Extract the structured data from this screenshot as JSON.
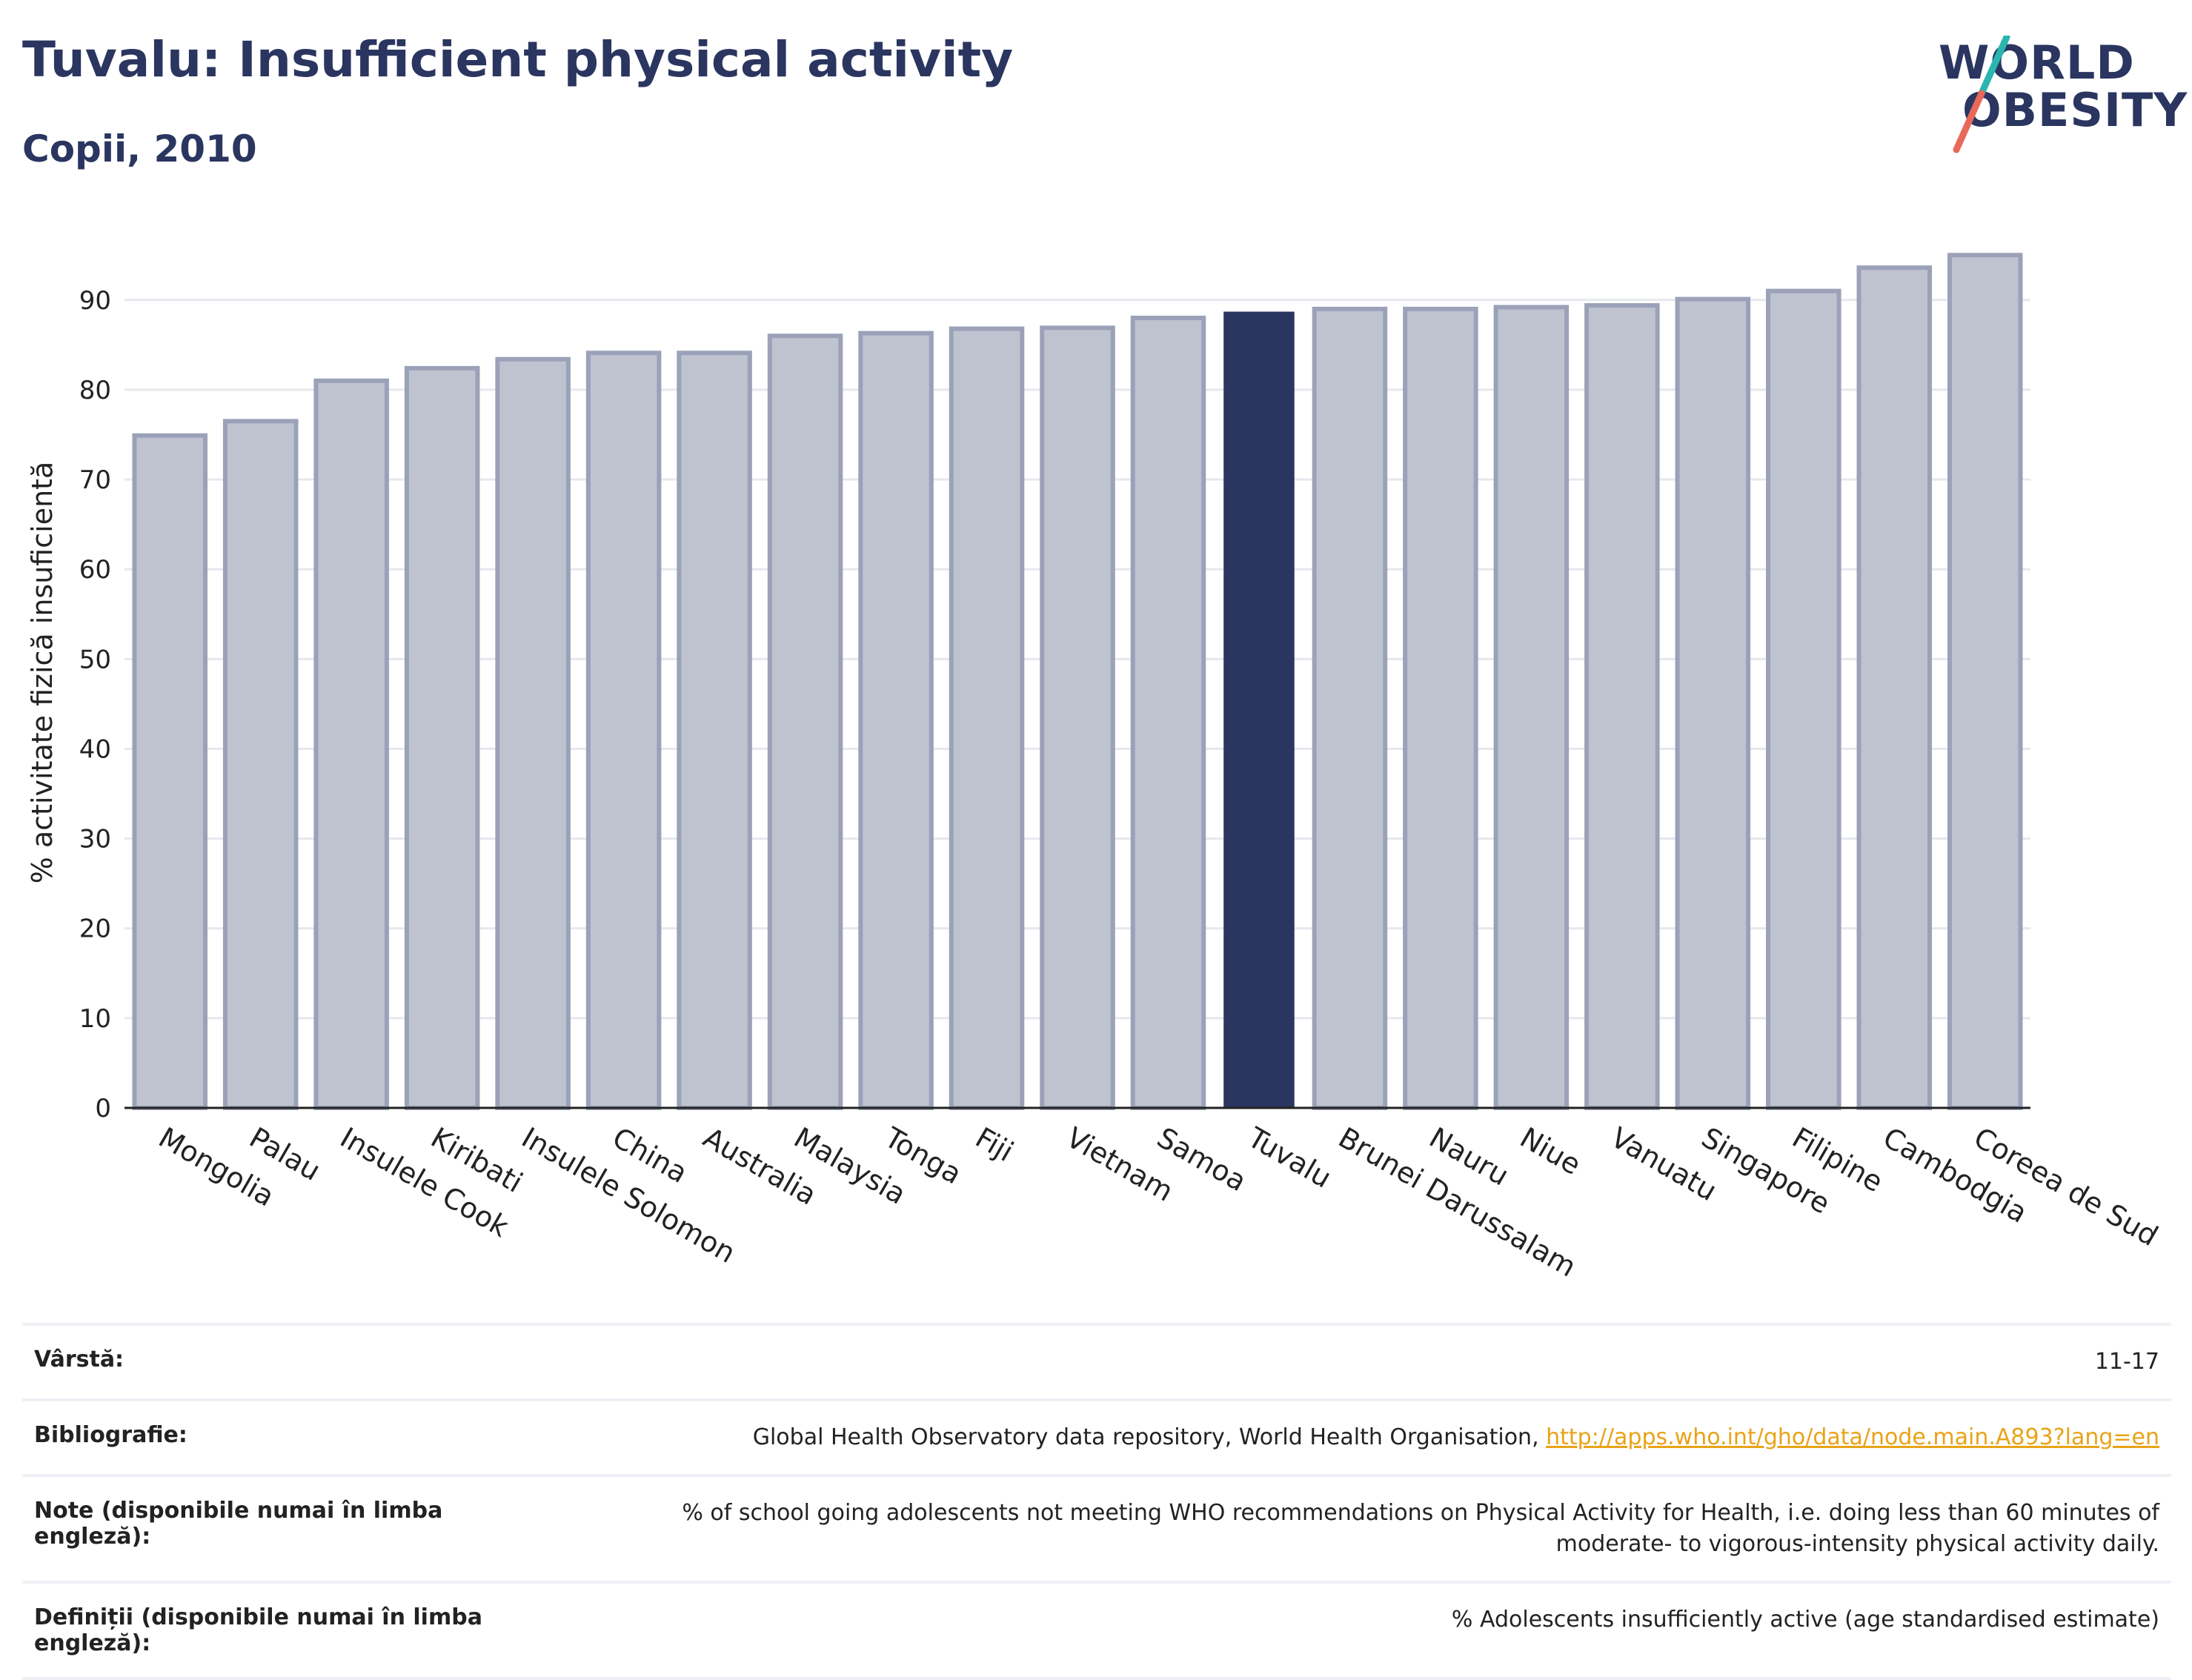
{
  "header": {
    "title": "Tuvalu: Insufficient physical activity",
    "subtitle": "Copii, 2010",
    "logo_line1": "WORLD",
    "logo_line2": "OBESITY"
  },
  "colors": {
    "bar": "#bfc3d0",
    "bar_border": "#9ba1b8",
    "highlight": "#2a3560",
    "grid": "#e6e8ee",
    "logo_teal": "#2bb5b0",
    "logo_red": "#e8685a"
  },
  "chart_data": {
    "type": "bar",
    "title": "Tuvalu: Insufficient physical activity",
    "subtitle": "Copii, 2010",
    "ylabel": "% activitate fizică insuficientă",
    "xlabel": "",
    "ylim": [
      0,
      97
    ],
    "yticks": [
      0,
      10,
      20,
      30,
      40,
      50,
      60,
      70,
      80,
      90
    ],
    "grid": true,
    "highlight": "Tuvalu",
    "categories": [
      "Mongolia",
      "Palau",
      "Insulele Cook",
      "Kiribati",
      "Insulele Solomon",
      "China",
      "Australia",
      "Malaysia",
      "Tonga",
      "Fiji",
      "Vietnam",
      "Samoa",
      "Tuvalu",
      "Brunei Darussalam",
      "Nauru",
      "Niue",
      "Vanuatu",
      "Singapore",
      "Filipine",
      "Cambodgia",
      "Coreea de Sud"
    ],
    "values": [
      74.9,
      76.5,
      81.0,
      82.4,
      83.4,
      84.1,
      84.1,
      86.0,
      86.3,
      86.8,
      86.9,
      88.0,
      88.7,
      89.0,
      89.0,
      89.2,
      89.4,
      90.1,
      91.0,
      93.6,
      95.0
    ]
  },
  "info_table": [
    {
      "key": "Vârstă:",
      "value": "11-17"
    },
    {
      "key": "Bibliografie:",
      "value": "Global Health Observatory data repository, World Health Organisation, ",
      "link": "http://apps.who.int/gho/data/node.main.A893?lang=en"
    },
    {
      "key": "Note (disponibile numai în limba engleză):",
      "value": "% of school going adolescents not meeting WHO recommendations on Physical Activity for Health, i.e. doing less than 60 minutes of moderate- to vigorous-intensity physical activity daily."
    },
    {
      "key": "Definiții (disponibile numai în limba engleză):",
      "value": "% Adolescents insufficiently active (age standardised estimate)"
    }
  ]
}
